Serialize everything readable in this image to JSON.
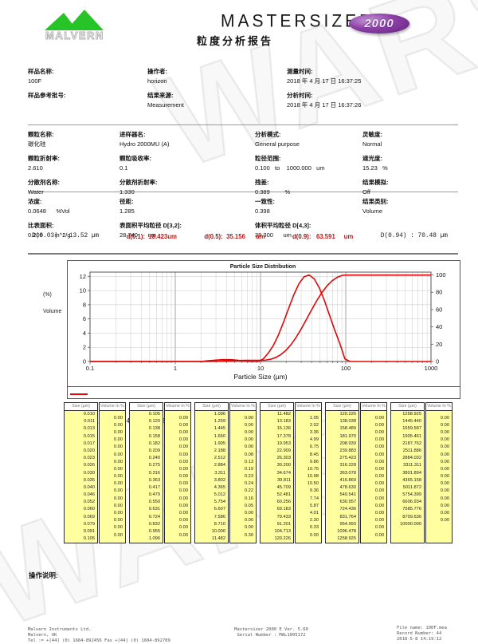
{
  "header": {
    "brand": "MALVERN",
    "product": "MASTERSIZER",
    "badge": "2000",
    "report_title": "粒度分析报告"
  },
  "sec1": {
    "rows": [
      [
        {
          "l": "样品名称:",
          "v": "100F"
        },
        {
          "l": "操作者:",
          "v": "horizon"
        },
        {
          "l": "测量时间:",
          "v": "2018 年 4 月 17 日 16:37:25"
        }
      ],
      [
        {
          "l": "样品参考批号:",
          "v": ""
        },
        {
          "l": "结果来源:",
          "v": "Measurement"
        },
        {
          "l": "分析时间:",
          "v": "2018 年 4 月 17 日 16:37:26"
        }
      ]
    ]
  },
  "sec2": {
    "rows": [
      [
        {
          "l": "颗粒名称:",
          "v": "碳化硅"
        },
        {
          "l": "进样器名:",
          "v": "Hydro 2000MU (A)"
        },
        {
          "l": "分析模式:",
          "v": "General purpose"
        },
        {
          "l": "灵敏度:",
          "v": "Normal"
        }
      ],
      [
        {
          "l": "颗粒折射率:",
          "v": "2.610"
        },
        {
          "l": "颗粒吸收率:",
          "v": "0.1"
        },
        {
          "l": "粒径范围:",
          "v": "0.100   to    1000.000   um"
        },
        {
          "l": "遮光度:",
          "v": "15.23   %"
        }
      ],
      [
        {
          "l": "分散剂名称:",
          "v": "Water"
        },
        {
          "l": "分散剂折射率:",
          "v": "1.330"
        },
        {
          "l": "残差:",
          "v": "0.389         %"
        },
        {
          "l": "结果模拟:",
          "v": "Off"
        }
      ]
    ]
  },
  "sec3": {
    "rows": [
      [
        {
          "l": "浓度:",
          "v": "0.0648      %Vol"
        },
        {
          "l": "径距:",
          "v": "1.285"
        },
        {
          "l": "一致性:",
          "v": "0.398"
        },
        {
          "l": "结果类别:",
          "v": "Volume"
        }
      ],
      [
        {
          "l": "比表面积:",
          "v": "0.209       m^2/g"
        },
        {
          "l": "表面积平均粒径 D[3,2]:",
          "v": "28.740      um"
        },
        {
          "l": "体积平均粒径 D[4,3]:",
          "v": "38.300      um"
        },
        {
          "l": "",
          "v": ""
        }
      ]
    ]
  },
  "dvalues": [
    {
      "label": "D(0.03) :",
      "value": " 13.52 µm"
    },
    {
      "label": "d(0.1):",
      "value": "  18.423um"
    },
    {
      "label": "d(0.5):",
      "value": "  35.156      um"
    },
    {
      "label": "d(0.9):",
      "value": "   63.591     um"
    },
    {
      "label": "D(0.94) :",
      "value": " 70.48 µm"
    }
  ],
  "chart_data": {
    "type": "line",
    "title": "Particle Size Distribution",
    "xlabel": "Particle Size (µm)",
    "ylabel_left_line1": "(%)",
    "ylabel_left_line2": "Volume",
    "legend": "100F, 2018 年 4 月 17 日 16:37:25",
    "line_color": "#dd0806",
    "xlim": [
      0.1,
      1000
    ],
    "x_ticks": [
      0.1,
      1,
      10,
      100,
      1000
    ],
    "left_ticks": [
      0,
      2,
      4,
      6,
      8,
      10,
      12
    ],
    "right_ticks": [
      0,
      20,
      40,
      60,
      80,
      100
    ],
    "grid": true,
    "legend_position": "bottom",
    "series": [
      {
        "name": "volume-frequency",
        "axis": "left",
        "source": "volume_in_percent"
      },
      {
        "name": "cumulative-undersize",
        "axis": "right",
        "source": "cumulative-of-volume_in_percent"
      }
    ],
    "sizes_um": [
      0.01,
      0.011,
      0.013,
      0.015,
      0.017,
      0.02,
      0.023,
      0.026,
      0.03,
      0.035,
      0.04,
      0.046,
      0.052,
      0.06,
      0.069,
      0.079,
      0.091,
      0.105,
      0.12,
      0.138,
      0.158,
      0.182,
      0.209,
      0.24,
      0.275,
      0.316,
      0.363,
      0.417,
      0.479,
      0.55,
      0.631,
      0.724,
      0.832,
      0.955,
      1.096,
      1.259,
      1.445,
      1.66,
      1.905,
      2.188,
      2.512,
      2.884,
      3.311,
      3.802,
      4.365,
      5.012,
      5.754,
      6.607,
      7.586,
      8.71,
      10.0,
      11.482,
      13.183,
      15.136,
      17.378,
      19.953,
      22.909,
      26.303,
      30.2,
      34.674,
      39.811,
      45.709,
      52.481,
      60.256,
      69.183,
      79.433,
      91.201,
      104.713,
      120.226,
      138.038,
      158.489,
      181.97,
      208.93,
      239.883,
      275.423,
      316.228,
      363.078,
      416.869,
      478.63,
      549.541,
      630.957,
      724.436,
      831.764,
      954.993,
      1096.478,
      1258.925,
      1445.44,
      1659.587,
      1905.461,
      2187.762,
      2511.886,
      2884.032,
      3311.311,
      3801.894,
      4365.158,
      5011.872,
      5754.399,
      6606.934,
      7585.776,
      8709.636,
      10000.0
    ],
    "volume_in_percent": [
      0,
      0,
      0,
      0,
      0,
      0,
      0,
      0,
      0,
      0,
      0,
      0,
      0,
      0,
      0,
      0,
      0,
      0,
      0,
      0,
      0,
      0,
      0,
      0,
      0,
      0,
      0,
      0,
      0,
      0,
      0,
      0,
      0,
      0,
      0,
      0,
      0,
      0,
      0,
      0.08,
      0.13,
      0.19,
      0.23,
      0.24,
      0.22,
      0.16,
      0.05,
      0,
      0,
      0,
      0.3,
      1.05,
      2.02,
      3.36,
      4.99,
      6.75,
      8.45,
      9.86,
      10.75,
      10.98,
      10.5,
      9.36,
      7.74,
      5.87,
      4.01,
      2.3,
      0.33,
      0.0,
      0,
      0,
      0,
      0,
      0,
      0,
      0,
      0,
      0,
      0,
      0,
      0,
      0,
      0,
      0,
      0,
      0,
      0,
      0,
      0,
      0,
      0,
      0,
      0,
      0,
      0,
      0,
      0,
      0,
      0,
      0,
      0
    ]
  },
  "table": {
    "size_header": "Size (µm)",
    "volume_header": "Volume In %",
    "groups": [
      {
        "start": 0,
        "count": 18
      },
      {
        "start": 17,
        "count": 18
      },
      {
        "start": 34,
        "count": 18
      },
      {
        "start": 51,
        "count": 18
      },
      {
        "start": 68,
        "count": 18
      },
      {
        "start": 85,
        "count": 16
      }
    ]
  },
  "notes_label": "操作说明:",
  "footer": {
    "left": [
      "Malvern Instruments Ltd.",
      "Malvern, UK",
      "Tel := +[44] (0) 1684-892456 Fax +[44] (0) 1684-892789"
    ],
    "center": [
      "Mastersizer 2000 E Ver. 5.60",
      "Serial Number : MAL1005172"
    ],
    "right": [
      "File name: 100F.mea",
      "Record Number: 44",
      "2018-5-8 14:19:12"
    ]
  },
  "watermark": "WARS"
}
